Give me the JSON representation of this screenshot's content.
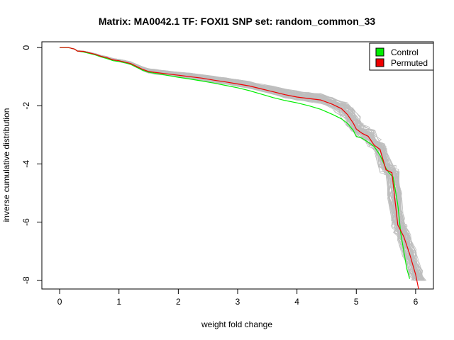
{
  "chart_data": {
    "type": "line",
    "title": "Matrix: MA0042.1 TF: FOXI1 SNP set: random_common_33",
    "xlabel": "weight fold change",
    "ylabel": "inverse cumulative distribution",
    "xlim": [
      -0.3,
      6.3
    ],
    "ylim": [
      -8.3,
      0.2
    ],
    "xticks": [
      0,
      1,
      2,
      3,
      4,
      5,
      6
    ],
    "xtick_labels": [
      "0",
      "1",
      "2",
      "3",
      "4",
      "5",
      "6"
    ],
    "yticks": [
      0,
      -2,
      -4,
      -6,
      -8
    ],
    "ytick_labels": [
      "0",
      "-2",
      "-4",
      "-6",
      "-8"
    ],
    "grid": false,
    "legend_position": "top-right",
    "legend": [
      {
        "label": "Control",
        "color": "#00ee00"
      },
      {
        "label": "Permuted",
        "color": "#ee0000"
      }
    ],
    "band_color": "#bebebe",
    "band_count": 60,
    "series": [
      {
        "name": "Control",
        "color": "#00ee00",
        "x": [
          0.0,
          0.15,
          0.25,
          0.3,
          0.4,
          0.5,
          0.6,
          0.7,
          0.8,
          0.9,
          1.0,
          1.1,
          1.2,
          1.3,
          1.4,
          1.5,
          1.6,
          1.8,
          2.0,
          2.2,
          2.4,
          2.6,
          2.8,
          3.0,
          3.2,
          3.4,
          3.6,
          3.8,
          4.0,
          4.2,
          4.4,
          4.6,
          4.75,
          4.85,
          4.95,
          5.0,
          5.1,
          5.2,
          5.3,
          5.4,
          5.5,
          5.55,
          5.62,
          5.7,
          5.75,
          5.8,
          5.85,
          5.9
        ],
        "y": [
          0.0,
          0.0,
          -0.05,
          -0.12,
          -0.15,
          -0.2,
          -0.25,
          -0.32,
          -0.38,
          -0.45,
          -0.48,
          -0.52,
          -0.58,
          -0.68,
          -0.78,
          -0.85,
          -0.88,
          -0.95,
          -1.02,
          -1.08,
          -1.15,
          -1.22,
          -1.3,
          -1.38,
          -1.48,
          -1.6,
          -1.72,
          -1.82,
          -1.9,
          -2.0,
          -2.12,
          -2.3,
          -2.45,
          -2.6,
          -2.85,
          -3.05,
          -3.12,
          -3.25,
          -3.4,
          -3.7,
          -4.15,
          -4.3,
          -4.45,
          -5.4,
          -6.4,
          -7.0,
          -7.6,
          -7.95
        ]
      },
      {
        "name": "Permuted",
        "color": "#ee0000",
        "x": [
          0.0,
          0.15,
          0.25,
          0.3,
          0.4,
          0.5,
          0.6,
          0.7,
          0.8,
          0.9,
          1.0,
          1.1,
          1.2,
          1.3,
          1.4,
          1.5,
          1.6,
          1.8,
          2.0,
          2.2,
          2.4,
          2.6,
          2.8,
          3.0,
          3.2,
          3.4,
          3.6,
          3.8,
          4.0,
          4.2,
          4.4,
          4.6,
          4.75,
          4.85,
          4.95,
          5.0,
          5.1,
          5.2,
          5.3,
          5.4,
          5.5,
          5.6,
          5.65,
          5.7,
          5.75,
          5.8,
          5.9,
          6.0,
          6.05
        ],
        "y": [
          0.0,
          0.0,
          -0.05,
          -0.12,
          -0.13,
          -0.18,
          -0.23,
          -0.3,
          -0.35,
          -0.42,
          -0.45,
          -0.5,
          -0.55,
          -0.65,
          -0.75,
          -0.82,
          -0.85,
          -0.9,
          -0.95,
          -1.0,
          -1.05,
          -1.12,
          -1.18,
          -1.25,
          -1.32,
          -1.42,
          -1.52,
          -1.62,
          -1.7,
          -1.75,
          -1.8,
          -1.95,
          -2.1,
          -2.3,
          -2.6,
          -2.8,
          -2.95,
          -3.05,
          -3.35,
          -3.5,
          -4.2,
          -4.3,
          -5.2,
          -6.1,
          -6.3,
          -6.5,
          -7.1,
          -7.8,
          -8.3
        ]
      }
    ]
  }
}
